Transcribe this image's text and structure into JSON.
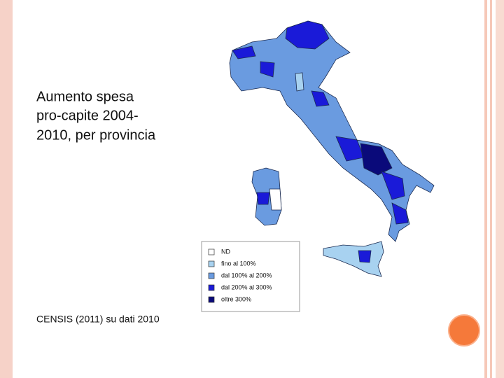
{
  "title_lines": [
    "Aumento spesa",
    "pro-capite 2004-",
    "2010, per provincia"
  ],
  "source": "CENSIS (2011) su dati 2010",
  "legend": [
    {
      "label": "ND",
      "color": "#ffffff"
    },
    {
      "label": "fino al 100%",
      "color": "#a8d2f0"
    },
    {
      "label": "dal 100% al 200%",
      "color": "#6a9be0"
    },
    {
      "label": "dal 200% al 300%",
      "color": "#1a1ad8"
    },
    {
      "label": "oltre 300%",
      "color": "#0a0a7a"
    }
  ]
}
